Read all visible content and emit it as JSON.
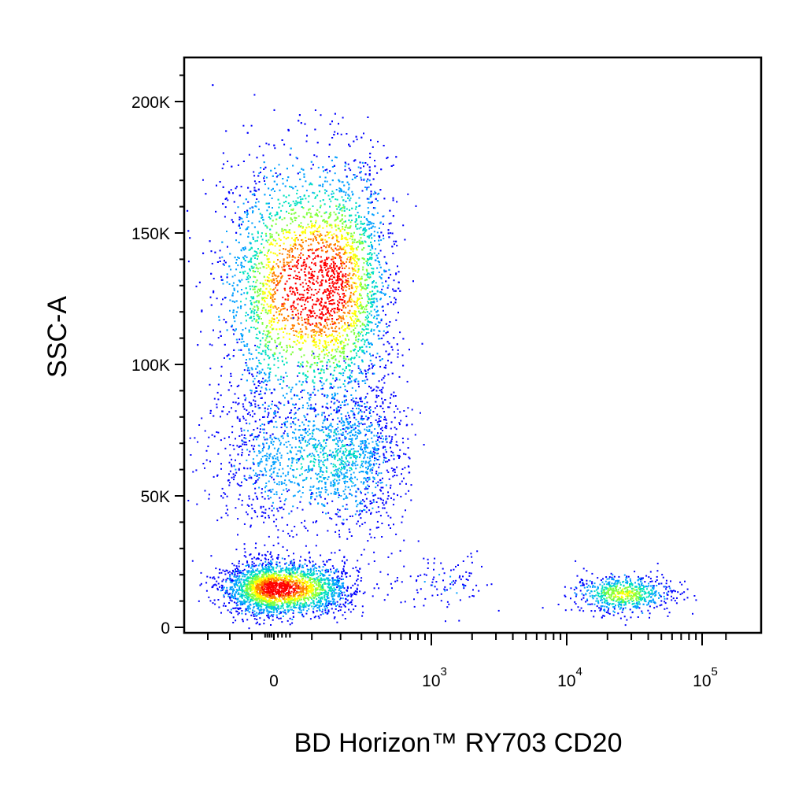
{
  "chart_data": {
    "type": "scatter",
    "subtype": "flow-cytometry-density-dot-plot",
    "xlabel": "BD Horizon™ RY703 CD20",
    "ylabel": "SSC-A",
    "x_scale": "biexponential",
    "y_scale": "linear",
    "xlim": [
      -300,
      160000
    ],
    "ylim": [
      -2000,
      216000
    ],
    "x_ticks": [
      {
        "value": 0,
        "label": "0",
        "exp": ""
      },
      {
        "value": 1000,
        "label": "10",
        "exp": "3"
      },
      {
        "value": 10000,
        "label": "10",
        "exp": "4"
      },
      {
        "value": 100000,
        "label": "10",
        "exp": "5"
      }
    ],
    "y_ticks": [
      {
        "value": 0,
        "label": "0"
      },
      {
        "value": 50000,
        "label": "50K"
      },
      {
        "value": 100000,
        "label": "100K"
      },
      {
        "value": 150000,
        "label": "150K"
      },
      {
        "value": 200000,
        "label": "200K"
      }
    ],
    "density_colors": [
      "#0000ff",
      "#00a0ff",
      "#00e0c0",
      "#80ff40",
      "#ffff00",
      "#ff8000",
      "#ff0000"
    ],
    "populations": [
      {
        "count": 5200,
        "x_center": 120,
        "x_sd": 170,
        "y_center": 130000,
        "y_sd": 24000,
        "peak_density": 1.0
      },
      {
        "count": 1800,
        "x_center": 160,
        "x_sd": 200,
        "y_center": 65000,
        "y_sd": 14000,
        "peak_density": 0.25
      },
      {
        "count": 2600,
        "x_center": 0,
        "x_sd": 110,
        "y_center": 15000,
        "y_sd": 5000,
        "peak_density": 0.95
      },
      {
        "count": 700,
        "x_center": 26000,
        "x_sd": 9000,
        "y_center": 13000,
        "y_sd": 3500,
        "peak_density": 0.55
      },
      {
        "count": 120,
        "x_center": 1200,
        "x_sd": 600,
        "y_center": 18000,
        "y_sd": 5000,
        "peak_density": 0.05
      }
    ],
    "grid": false,
    "legend": "none"
  }
}
